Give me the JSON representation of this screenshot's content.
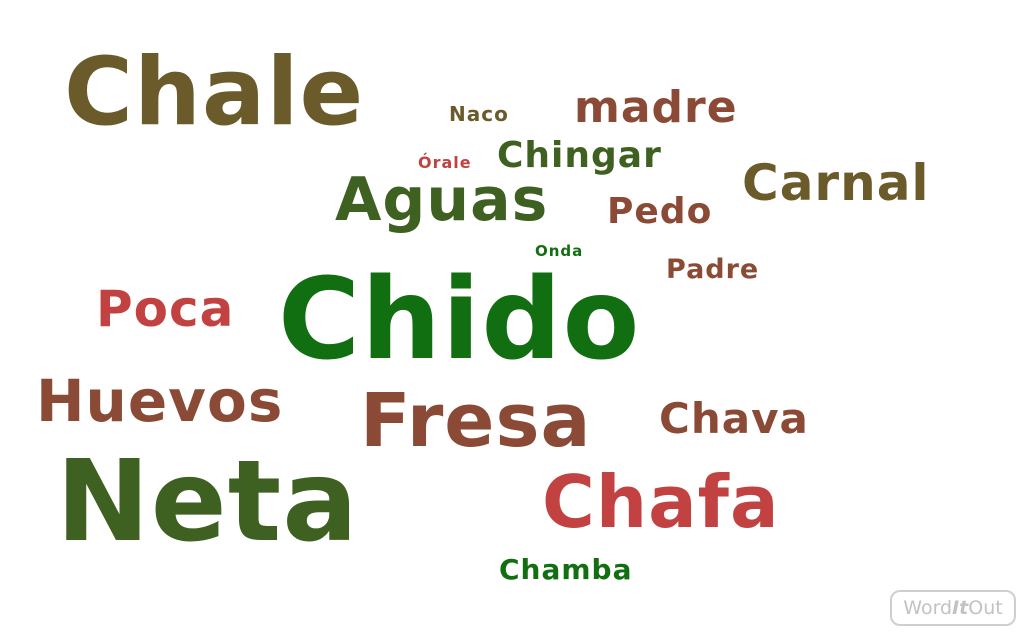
{
  "colors": {
    "olive": "#6b5a2a",
    "brown": "#8b4a35",
    "green": "#116e11",
    "darkgreen": "#3e6020",
    "red": "#c24242"
  },
  "words": [
    {
      "id": "chale",
      "text": "Chale",
      "color": "#6b5a2a"
    },
    {
      "id": "naco",
      "text": "Naco",
      "color": "#6b5a2a"
    },
    {
      "id": "madre",
      "text": "madre",
      "color": "#8b4a35"
    },
    {
      "id": "orale",
      "text": "Órale",
      "color": "#c24242"
    },
    {
      "id": "chingar",
      "text": "Chingar",
      "color": "#3e6020"
    },
    {
      "id": "carnal",
      "text": "Carnal",
      "color": "#6b5a2a"
    },
    {
      "id": "aguas",
      "text": "Aguas",
      "color": "#3e6020"
    },
    {
      "id": "pedo",
      "text": "Pedo",
      "color": "#8b4a35"
    },
    {
      "id": "onda",
      "text": "Onda",
      "color": "#116e11"
    },
    {
      "id": "padre",
      "text": "Padre",
      "color": "#8b4a35"
    },
    {
      "id": "poca",
      "text": "Poca",
      "color": "#c24242"
    },
    {
      "id": "chido",
      "text": "Chido",
      "color": "#116e11"
    },
    {
      "id": "huevos",
      "text": "Huevos",
      "color": "#8b4a35"
    },
    {
      "id": "fresa",
      "text": "Fresa",
      "color": "#8b4a35"
    },
    {
      "id": "chava",
      "text": "Chava",
      "color": "#8b4a35"
    },
    {
      "id": "neta",
      "text": "Neta",
      "color": "#3e6020"
    },
    {
      "id": "chafa",
      "text": "Chafa",
      "color": "#c24242"
    },
    {
      "id": "chamba",
      "text": "Chamba",
      "color": "#116e11"
    }
  ],
  "logo": {
    "part1": "Word",
    "part2": "It",
    "part3": "Out"
  }
}
